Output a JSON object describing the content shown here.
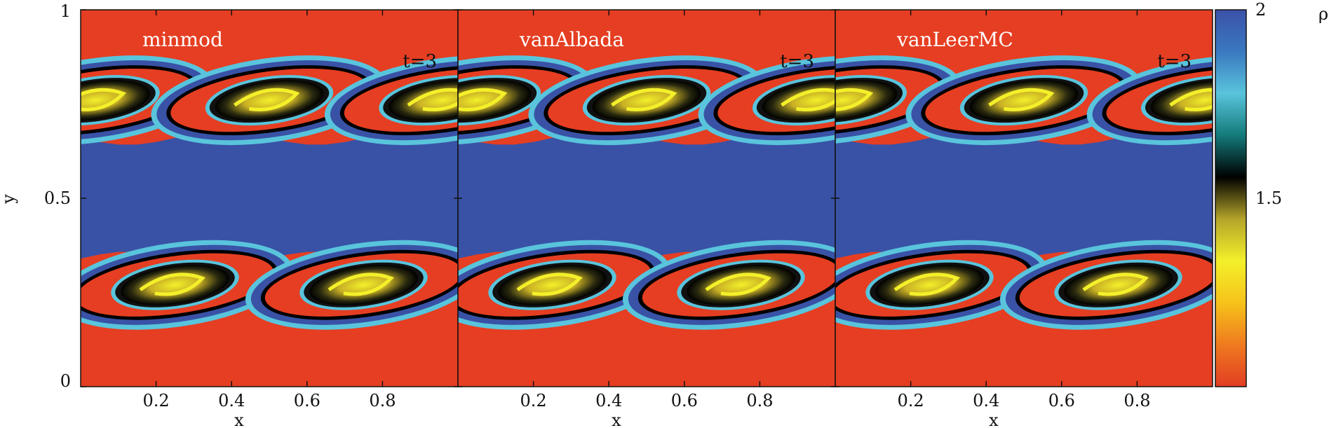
{
  "chart_data": {
    "type": "heatmap",
    "variable": "density",
    "panels": [
      {
        "label": "minmod",
        "time": "t=3"
      },
      {
        "label": "vanAlbada",
        "time": "t=3"
      },
      {
        "label": "vanLeerMC",
        "time": "t=3"
      }
    ],
    "xlabel": "x",
    "ylabel": "y",
    "xlim": [
      0,
      1
    ],
    "ylim": [
      0,
      1
    ],
    "x_ticks": [
      0.2,
      0.4,
      0.6,
      0.8
    ],
    "x_tick_labels": [
      "0.2",
      "0.4",
      "0.6",
      "0.8"
    ],
    "y_ticks": [
      0,
      0.5,
      1
    ],
    "y_tick_labels": [
      "0",
      "0.5",
      "1"
    ],
    "colorbar": {
      "label": "ρ",
      "range": [
        1,
        2
      ],
      "ticks": [
        1.5,
        2
      ],
      "tick_labels": [
        "1.5",
        "2"
      ],
      "colors": [
        "#e13d23",
        "#ef7a1f",
        "#f6c21a",
        "#f3f02a",
        "#b5a52a",
        "#000000",
        "#147a7a",
        "#59c4dc",
        "#3a78c0",
        "#3b52a8"
      ]
    },
    "background_colors": {
      "light_fluid": "#e53e22",
      "dense_fluid": "#3952a6"
    }
  }
}
